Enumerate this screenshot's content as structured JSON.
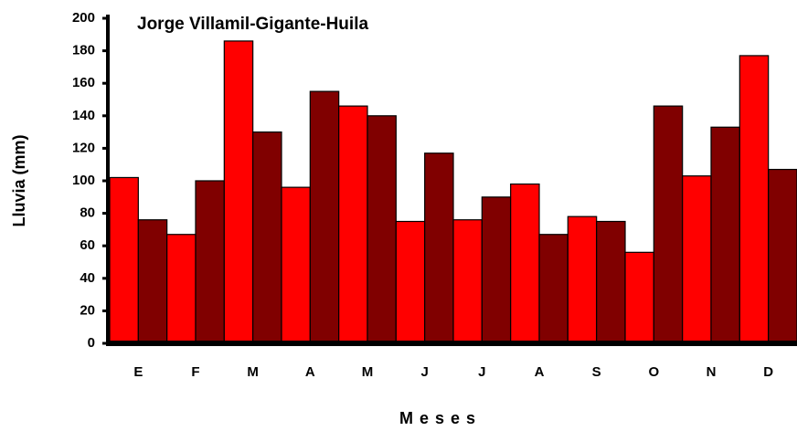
{
  "chart_data": {
    "type": "bar",
    "title": "Jorge Villamil-Gigante-Huila",
    "x_label": "Meses",
    "y_label": "Lluvia (mm)",
    "categories": [
      "E",
      "F",
      "M",
      "A",
      "M",
      "J",
      "J",
      "A",
      "S",
      "O",
      "N",
      "D"
    ],
    "series": [
      {
        "color": "#ff0000",
        "values": [
          102,
          67,
          186,
          96,
          146,
          75,
          76,
          98,
          78,
          56,
          103,
          177
        ]
      },
      {
        "color": "#800000",
        "values": [
          76,
          100,
          130,
          155,
          140,
          117,
          90,
          67,
          75,
          146,
          133,
          107
        ]
      }
    ],
    "ylim": [
      0,
      200
    ],
    "yticks": [
      0,
      20,
      40,
      60,
      80,
      100,
      120,
      140,
      160,
      180,
      200
    ]
  }
}
